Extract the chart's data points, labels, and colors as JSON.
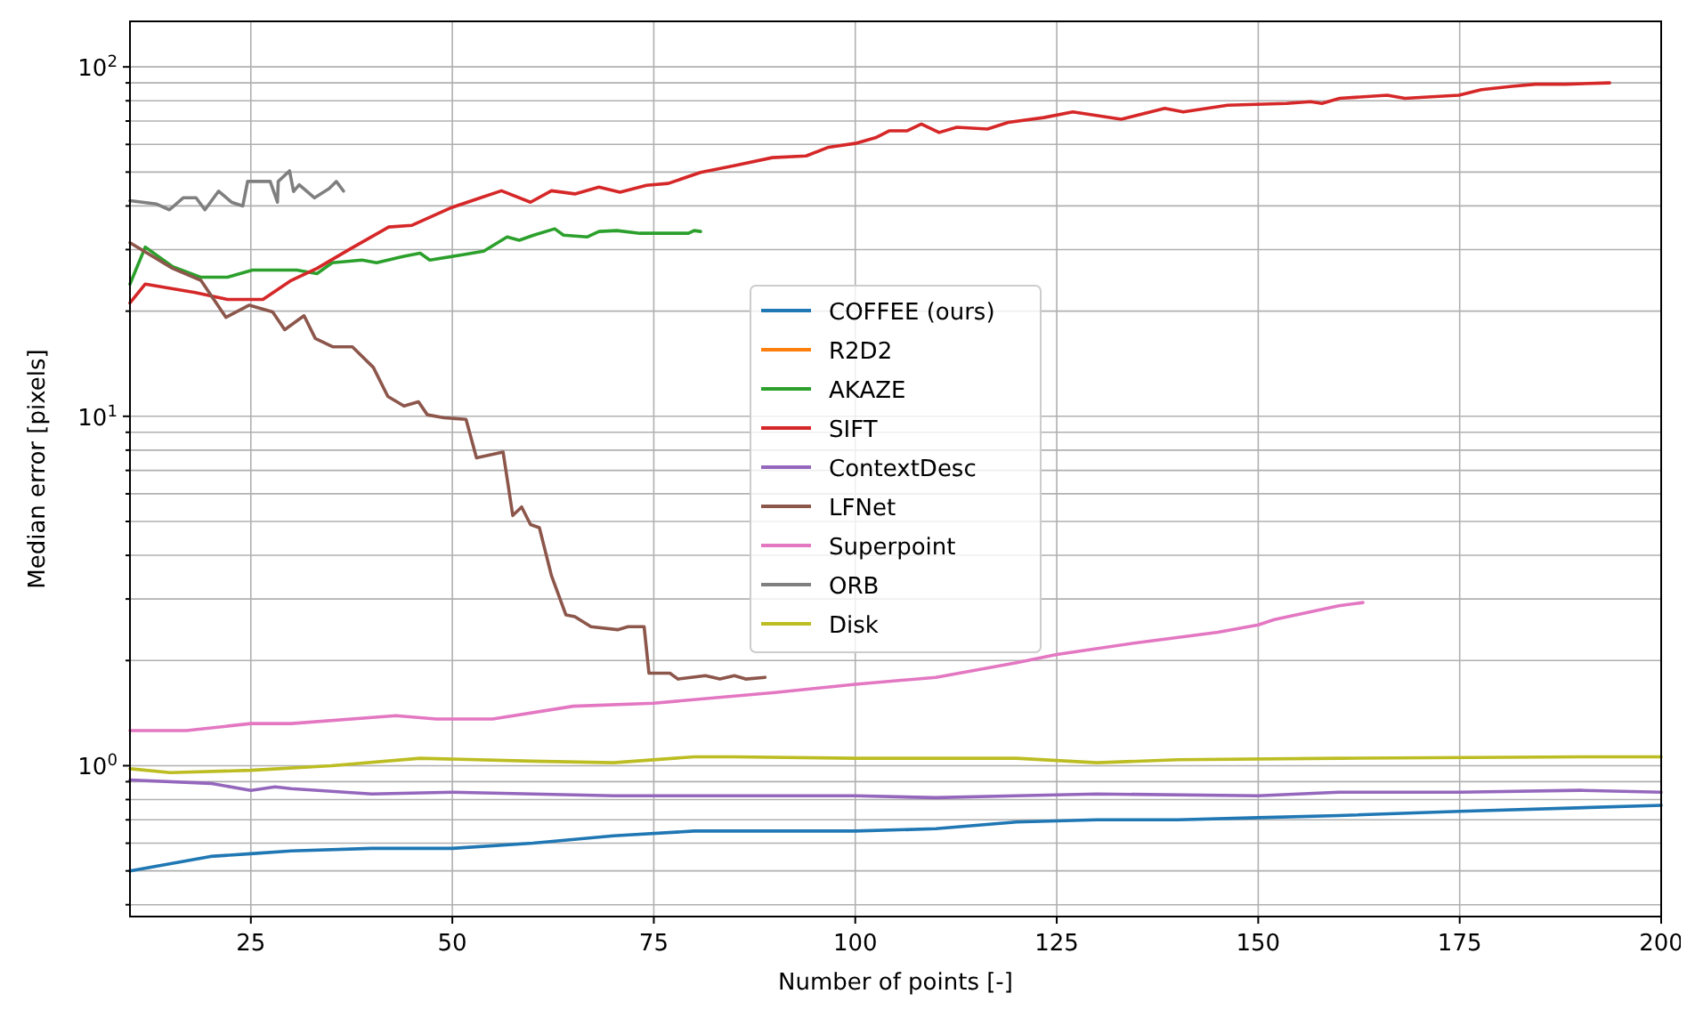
{
  "chart_data": {
    "type": "line",
    "xlabel": "Number of points [-]",
    "ylabel": "Median error [pixels]",
    "log": "y",
    "grid": true,
    "legend": "center",
    "line_style": "solid",
    "marker": "none",
    "xlim": [
      10,
      200
    ],
    "xticks": [
      25,
      50,
      75,
      100,
      125,
      150,
      175,
      200
    ],
    "ylim": [
      0.37,
      135
    ],
    "yticks": [
      {
        "value": 0.4,
        "label": null
      },
      {
        "value": 0.5,
        "label": null
      },
      {
        "value": 0.6,
        "label": null
      },
      {
        "value": 0.7,
        "label": null
      },
      {
        "value": 0.8,
        "label": null
      },
      {
        "value": 0.9,
        "label": null
      },
      {
        "value": 1,
        "label": "10$^{0}$"
      },
      {
        "value": 2,
        "label": null
      },
      {
        "value": 3,
        "label": null
      },
      {
        "value": 4,
        "label": null
      },
      {
        "value": 5,
        "label": null
      },
      {
        "value": 6,
        "label": null
      },
      {
        "value": 7,
        "label": null
      },
      {
        "value": 8,
        "label": null
      },
      {
        "value": 9,
        "label": null
      },
      {
        "value": 10,
        "label": "10$^{1}$"
      },
      {
        "value": 20,
        "label": null
      },
      {
        "value": 30,
        "label": null
      },
      {
        "value": 40,
        "label": null
      },
      {
        "value": 50,
        "label": null
      },
      {
        "value": 60,
        "label": null
      },
      {
        "value": 70,
        "label": null
      },
      {
        "value": 80,
        "label": null
      },
      {
        "value": 90,
        "label": null
      },
      {
        "value": 100,
        "label": "10$^{2}$"
      }
    ],
    "series": [
      {
        "name": "COFFEE (ours)",
        "color": "#1f77b4",
        "x": [
          10,
          20,
          25,
          30,
          40,
          50,
          60,
          70,
          80,
          100,
          110,
          120,
          130,
          140,
          150,
          160,
          175,
          200
        ],
        "values": [
          0.5,
          0.55,
          0.56,
          0.57,
          0.58,
          0.58,
          0.6,
          0.63,
          0.65,
          0.65,
          0.66,
          0.69,
          0.7,
          0.7,
          0.71,
          0.72,
          0.74,
          0.77
        ]
      },
      {
        "name": "R2D2",
        "color": "#ff7f0e"
      },
      {
        "name": "AKAZE",
        "color": "#2ca02c",
        "x": [
          10,
          11.9,
          15.3,
          18.8,
          22.1,
          25.2,
          30.7,
          33.2,
          35.1,
          38.8,
          40.6,
          44,
          46,
          47.2,
          51.3,
          53.9,
          56.8,
          58.3,
          60.1,
          62.7,
          63.8,
          66.7,
          68.2,
          70.4,
          73.3,
          76.2,
          79.3,
          80,
          80.8
        ],
        "values": [
          23.9,
          30.5,
          26.8,
          25,
          25,
          26.2,
          26.2,
          25.6,
          27.5,
          28,
          27.5,
          28.7,
          29.3,
          28,
          29,
          29.7,
          32.6,
          31.9,
          33,
          34.4,
          33,
          32.6,
          33.8,
          34,
          33.4,
          33.4,
          33.4,
          34,
          33.8
        ]
      },
      {
        "name": "SIFT",
        "color": "#d62728",
        "x": [
          10,
          11.9,
          18.1,
          22.1,
          26.5,
          29.9,
          33.2,
          37.3,
          42.1,
          45,
          49.8,
          53.5,
          56.1,
          59.7,
          62.3,
          65.2,
          68.2,
          70.8,
          74.1,
          76.8,
          80.8,
          85.2,
          89.7,
          93.9,
          96.7,
          100,
          102.5,
          104.2,
          106.4,
          108.2,
          110.4,
          112.6,
          116.4,
          119,
          123.4,
          127,
          133,
          138.4,
          140.7,
          146.2,
          153.5,
          156.5,
          157.9,
          160.1,
          166,
          168.2,
          174.9,
          177.7,
          181.5,
          184.4,
          188.1,
          193.6
        ],
        "values": [
          21.1,
          23.9,
          22.6,
          21.6,
          21.6,
          24.4,
          26.5,
          30.1,
          34.8,
          35.2,
          39.5,
          42.2,
          44.2,
          41,
          44.2,
          43.3,
          45.3,
          43.8,
          45.8,
          46.4,
          49.9,
          52.3,
          55,
          55.6,
          58.9,
          60.4,
          62.7,
          65.6,
          65.6,
          68.6,
          64.9,
          67.2,
          66.4,
          69.4,
          71.6,
          74.3,
          70.8,
          76.1,
          74.3,
          77.7,
          78.6,
          79.5,
          78.6,
          81.3,
          83,
          81.3,
          83,
          86.1,
          88,
          89.2,
          89.2,
          90
        ]
      },
      {
        "name": "ContextDesc",
        "color": "#9467bd",
        "x": [
          10,
          20,
          25,
          28,
          30,
          40,
          50,
          60,
          70,
          80,
          100,
          110,
          120,
          130,
          150,
          160,
          175,
          190,
          200
        ],
        "values": [
          0.91,
          0.89,
          0.85,
          0.87,
          0.86,
          0.83,
          0.84,
          0.83,
          0.82,
          0.82,
          0.82,
          0.81,
          0.82,
          0.83,
          0.82,
          0.84,
          0.84,
          0.85,
          0.84
        ]
      },
      {
        "name": "LFNet",
        "color": "#8c564b",
        "x": [
          10,
          15.3,
          18.8,
          21.9,
          24.8,
          27.7,
          29.2,
          31.6,
          33,
          35.2,
          37.6,
          40.2,
          42,
          44,
          45.8,
          46.9,
          49,
          51.7,
          53,
          56.3,
          57.5,
          58.6,
          59.7,
          60.8,
          62.3,
          64.1,
          65.2,
          67.2,
          70.5,
          71.8,
          73.8,
          74.4,
          77,
          78,
          81.4,
          83.2,
          85,
          86.4,
          88.8
        ],
        "values": [
          31.4,
          26.5,
          24.5,
          19.2,
          20.8,
          19.9,
          17.7,
          19.4,
          16.7,
          15.8,
          15.8,
          13.8,
          11.4,
          10.7,
          11,
          10.1,
          9.9,
          9.8,
          7.6,
          7.9,
          5.2,
          5.5,
          4.9,
          4.8,
          3.5,
          2.7,
          2.67,
          2.5,
          2.45,
          2.5,
          2.5,
          1.84,
          1.84,
          1.77,
          1.81,
          1.77,
          1.81,
          1.77,
          1.79
        ]
      },
      {
        "name": "Superpoint",
        "color": "#e377c2",
        "x": [
          10,
          17,
          25,
          30,
          43,
          48,
          55,
          65,
          75,
          90,
          100,
          110,
          120,
          125,
          135,
          145,
          150,
          152,
          160,
          163
        ],
        "values": [
          1.26,
          1.26,
          1.32,
          1.32,
          1.39,
          1.36,
          1.36,
          1.48,
          1.51,
          1.62,
          1.71,
          1.79,
          1.97,
          2.08,
          2.25,
          2.41,
          2.53,
          2.62,
          2.87,
          2.93
        ]
      },
      {
        "name": "ORB",
        "color": "#7f7f7f",
        "x": [
          10,
          13.3,
          14.9,
          16.6,
          18.2,
          19.3,
          21,
          22.6,
          24,
          24.6,
          27.4,
          28.3,
          28.4,
          29.8,
          30.3,
          31,
          32.9,
          34.7,
          35.6,
          36.5
        ],
        "values": [
          41.4,
          40.5,
          39,
          42.2,
          42.2,
          39,
          44.1,
          41,
          40,
          47,
          47,
          41,
          47,
          50.4,
          44,
          46,
          42.2,
          44.8,
          47,
          44.1
        ]
      },
      {
        "name": "Disk",
        "color": "#bcbd22",
        "x": [
          10,
          15,
          25,
          35,
          46,
          60,
          70,
          80,
          85,
          100,
          120,
          130,
          140,
          160,
          190,
          200
        ],
        "values": [
          0.98,
          0.955,
          0.97,
          1,
          1.05,
          1.03,
          1.02,
          1.06,
          1.06,
          1.05,
          1.05,
          1.02,
          1.04,
          1.05,
          1.06,
          1.06
        ]
      }
    ]
  }
}
